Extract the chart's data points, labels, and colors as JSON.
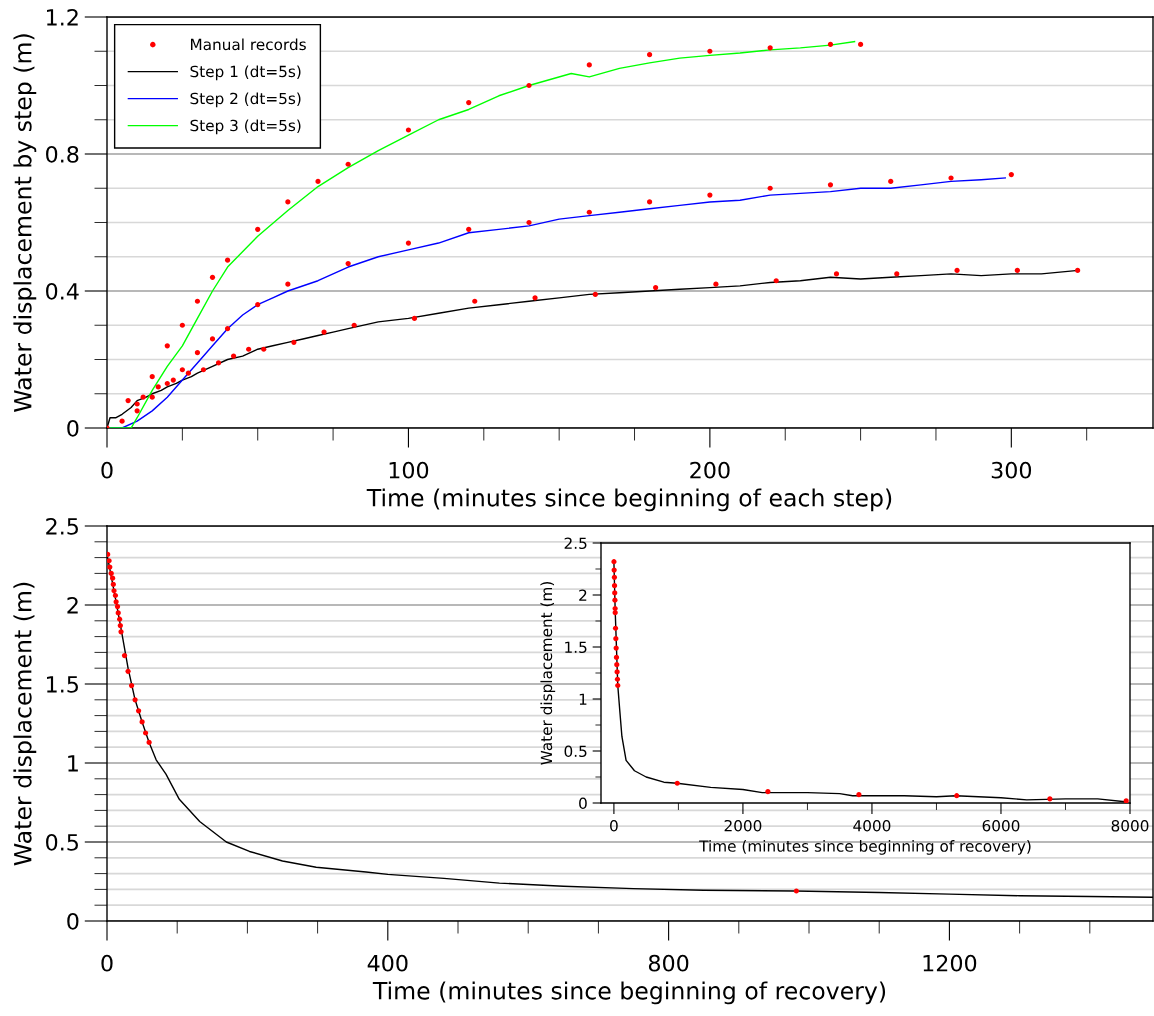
{
  "chart_data": [
    {
      "type": "line",
      "xlabel": "Time (minutes since beginning of each step)",
      "ylabel": "Water displacement by step (m)",
      "xlim": [
        0,
        347
      ],
      "xticks": [
        0,
        {
          "value": 25,
          "label": null
        },
        {
          "value": 50,
          "label": null
        },
        {
          "value": 75,
          "label": null
        },
        100,
        {
          "value": 125,
          "label": null
        },
        {
          "value": 150,
          "label": null
        },
        {
          "value": 175,
          "label": null
        },
        200,
        {
          "value": 225,
          "label": null
        },
        {
          "value": 250,
          "label": null
        },
        {
          "value": 275,
          "label": null
        },
        300,
        {
          "value": 325,
          "label": null
        }
      ],
      "ylim": [
        0,
        1.2
      ],
      "yticks": [
        0,
        {
          "value": 0.1,
          "label": null
        },
        {
          "value": 0.2,
          "label": null
        },
        {
          "value": 0.3,
          "label": null
        },
        0.4,
        {
          "value": 0.5,
          "label": null
        },
        {
          "value": 0.6,
          "label": null
        },
        {
          "value": 0.7,
          "label": null
        },
        0.8,
        {
          "value": 0.9,
          "label": null
        },
        {
          "value": 1.0,
          "label": null
        },
        {
          "value": 1.1,
          "label": null
        },
        1.2
      ],
      "grid": "y",
      "legend": "top left",
      "series": [
        {
          "name": "Manual records",
          "type": "scatter",
          "marker": "circle",
          "color": "#ff0000",
          "x": [
            0,
            5,
            7,
            10,
            10,
            12,
            15,
            15,
            17,
            20,
            20,
            22,
            25,
            25,
            27,
            30,
            30,
            32,
            35,
            35,
            37,
            40,
            40,
            42,
            47,
            50,
            50,
            52,
            60,
            60,
            62,
            70,
            72,
            80,
            80,
            82,
            100,
            100,
            102,
            120,
            120,
            122,
            140,
            140,
            142,
            160,
            180,
            200,
            220,
            240,
            250,
            160,
            180,
            200,
            220,
            240,
            260,
            280,
            300,
            162,
            182,
            202,
            222,
            242,
            262,
            282,
            302,
            322
          ],
          "values": [
            0,
            0.02,
            0.08,
            0.07,
            0.05,
            0.09,
            0.09,
            0.15,
            0.12,
            0.13,
            0.24,
            0.14,
            0.17,
            0.3,
            0.16,
            0.22,
            0.37,
            0.17,
            0.26,
            0.44,
            0.19,
            0.29,
            0.49,
            0.21,
            0.23,
            0.36,
            0.58,
            0.23,
            0.42,
            0.66,
            0.25,
            0.72,
            0.28,
            0.48,
            0.77,
            0.3,
            0.54,
            0.87,
            0.32,
            0.58,
            0.95,
            0.37,
            0.6,
            1.0,
            0.38,
            1.06,
            1.09,
            1.1,
            1.11,
            1.12,
            1.12,
            0.63,
            0.66,
            0.68,
            0.7,
            0.71,
            0.72,
            0.73,
            0.74,
            0.39,
            0.41,
            0.42,
            0.43,
            0.45,
            0.45,
            0.46,
            0.46,
            0.46
          ]
        },
        {
          "name": "Step 1 (dt=5s)",
          "color": "#000000",
          "x": [
            0,
            1,
            3,
            5,
            8,
            10,
            13,
            15,
            18,
            20,
            23,
            25,
            28,
            30,
            35,
            40,
            45,
            50,
            55,
            60,
            65,
            70,
            75,
            80,
            90,
            100,
            110,
            120,
            130,
            140,
            150,
            160,
            170,
            180,
            190,
            200,
            210,
            220,
            230,
            240,
            250,
            260,
            270,
            280,
            290,
            300,
            310,
            322
          ],
          "values": [
            0,
            0.03,
            0.03,
            0.04,
            0.06,
            0.08,
            0.09,
            0.1,
            0.11,
            0.12,
            0.13,
            0.14,
            0.15,
            0.16,
            0.18,
            0.2,
            0.21,
            0.23,
            0.24,
            0.25,
            0.26,
            0.27,
            0.28,
            0.29,
            0.31,
            0.32,
            0.335,
            0.35,
            0.36,
            0.37,
            0.38,
            0.39,
            0.395,
            0.4,
            0.405,
            0.41,
            0.415,
            0.425,
            0.43,
            0.44,
            0.435,
            0.44,
            0.445,
            0.45,
            0.445,
            0.45,
            0.45,
            0.46
          ]
        },
        {
          "name": "Step 2 (dt=5s)",
          "color": "#0000ff",
          "x": [
            0,
            3,
            5,
            10,
            15,
            20,
            25,
            30,
            35,
            40,
            45,
            50,
            55,
            60,
            70,
            80,
            90,
            100,
            110,
            120,
            130,
            140,
            150,
            160,
            170,
            180,
            190,
            200,
            210,
            220,
            230,
            240,
            250,
            260,
            270,
            280,
            290,
            298
          ],
          "values": [
            0,
            0.0,
            0.0,
            0.02,
            0.05,
            0.09,
            0.14,
            0.19,
            0.24,
            0.29,
            0.33,
            0.36,
            0.38,
            0.4,
            0.43,
            0.47,
            0.5,
            0.52,
            0.54,
            0.57,
            0.58,
            0.59,
            0.61,
            0.62,
            0.63,
            0.64,
            0.65,
            0.66,
            0.665,
            0.68,
            0.685,
            0.69,
            0.7,
            0.7,
            0.71,
            0.72,
            0.725,
            0.73
          ]
        },
        {
          "name": "Step 3 (dt=5s)",
          "color": "#00ff00",
          "x": [
            0,
            8,
            10,
            15,
            20,
            25,
            30,
            35,
            40,
            50,
            60,
            70,
            80,
            90,
            100,
            110,
            120,
            130,
            140,
            154,
            160,
            170,
            180,
            190,
            200,
            210,
            220,
            230,
            240,
            248
          ],
          "values": [
            0,
            0.0,
            0.03,
            0.11,
            0.18,
            0.24,
            0.32,
            0.4,
            0.47,
            0.56,
            0.635,
            0.705,
            0.76,
            0.81,
            0.855,
            0.9,
            0.93,
            0.97,
            1.0,
            1.035,
            1.025,
            1.05,
            1.066,
            1.08,
            1.088,
            1.095,
            1.104,
            1.11,
            1.118,
            1.128
          ]
        }
      ]
    },
    {
      "type": "line",
      "xlabel": "Time (minutes since beginning of recovery)",
      "ylabel": "Water displacement (m)",
      "xlim": [
        0,
        1490
      ],
      "xticks": [
        0,
        {
          "value": 100,
          "label": null
        },
        {
          "value": 200,
          "label": null
        },
        {
          "value": 300,
          "label": null
        },
        400,
        {
          "value": 500,
          "label": null
        },
        {
          "value": 600,
          "label": null
        },
        {
          "value": 700,
          "label": null
        },
        800,
        {
          "value": 900,
          "label": null
        },
        {
          "value": 1000,
          "label": null
        },
        {
          "value": 1100,
          "label": null
        },
        1200,
        {
          "value": 1300,
          "label": null
        },
        {
          "value": 1400,
          "label": null
        }
      ],
      "ylim": [
        0,
        2.5
      ],
      "yticks": [
        0,
        {
          "value": 0.1,
          "label": null
        },
        {
          "value": 0.2,
          "label": null
        },
        {
          "value": 0.3,
          "label": null
        },
        {
          "value": 0.4,
          "label": null
        },
        0.5,
        {
          "value": 0.6,
          "label": null
        },
        {
          "value": 0.7,
          "label": null
        },
        {
          "value": 0.8,
          "label": null
        },
        {
          "value": 0.9,
          "label": null
        },
        1,
        {
          "value": 1.1,
          "label": null
        },
        {
          "value": 1.2,
          "label": null
        },
        {
          "value": 1.3,
          "label": null
        },
        {
          "value": 1.4,
          "label": null
        },
        1.5,
        {
          "value": 1.6,
          "label": null
        },
        {
          "value": 1.7,
          "label": null
        },
        {
          "value": 1.8,
          "label": null
        },
        {
          "value": 1.9,
          "label": null
        },
        2,
        {
          "value": 2.1,
          "label": null
        },
        {
          "value": 2.2,
          "label": null
        },
        {
          "value": 2.3,
          "label": null
        },
        {
          "value": 2.4,
          "label": null
        },
        2.5
      ],
      "grid": "y",
      "series": [
        {
          "color": "#000000",
          "x": [
            0,
            10,
            20,
            30,
            40,
            50,
            60,
            70,
            84,
            103,
            132,
            170,
            203,
            250,
            298,
            369,
            400,
            480,
            559,
            650,
            750,
            850,
            980,
            1100,
            1200,
            1300,
            1400,
            1490
          ],
          "values": [
            2.32,
            2.09,
            1.85,
            1.6,
            1.4,
            1.26,
            1.13,
            1.02,
            0.93,
            0.77,
            0.63,
            0.5,
            0.44,
            0.38,
            0.34,
            0.31,
            0.295,
            0.27,
            0.24,
            0.22,
            0.205,
            0.195,
            0.19,
            0.18,
            0.17,
            0.16,
            0.155,
            0.15
          ]
        },
        {
          "type": "scatter",
          "marker": "circle",
          "color": "#ff0000",
          "x": [
            1,
            3,
            4,
            6,
            8,
            9,
            10,
            12,
            13,
            15,
            16,
            18,
            19,
            20,
            25,
            30,
            35,
            40,
            45,
            50,
            55,
            60,
            982
          ],
          "values": [
            2.32,
            2.28,
            2.24,
            2.2,
            2.17,
            2.13,
            2.09,
            2.06,
            2.02,
            1.99,
            1.95,
            1.91,
            1.87,
            1.83,
            1.68,
            1.58,
            1.49,
            1.4,
            1.33,
            1.26,
            1.19,
            1.13,
            0.19
          ]
        }
      ]
    },
    {
      "type": "line",
      "xlabel": "Time (minutes since beginning of recovery)",
      "ylabel": "Water displacement (m)",
      "xlim": [
        -200,
        8000
      ],
      "xticks": [
        0,
        {
          "value": 1000,
          "label": null
        },
        2000,
        {
          "value": 3000,
          "label": null
        },
        4000,
        {
          "value": 5000,
          "label": null
        },
        6000,
        {
          "value": 7000,
          "label": null
        },
        8000
      ],
      "ylim": [
        0,
        2.5
      ],
      "yticks": [
        0,
        {
          "value": 0.25,
          "label": null
        },
        0.5,
        {
          "value": 0.75,
          "label": null
        },
        1,
        {
          "value": 1.25,
          "label": null
        },
        1.5,
        {
          "value": 1.75,
          "label": null
        },
        2,
        {
          "value": 2.25,
          "label": null
        },
        2.5
      ],
      "series": [
        {
          "color": "#000000",
          "x": [
            0,
            20,
            60,
            91,
            124,
            189,
            319,
            500,
            774,
            980,
            1500,
            2000,
            2300,
            3000,
            3500,
            3700,
            4500,
            5000,
            5300,
            6000,
            6400,
            7000,
            7500,
            7950
          ],
          "values": [
            2.32,
            1.85,
            1.13,
            0.89,
            0.64,
            0.41,
            0.31,
            0.25,
            0.2,
            0.19,
            0.15,
            0.13,
            0.1,
            0.1,
            0.09,
            0.07,
            0.07,
            0.06,
            0.07,
            0.05,
            0.03,
            0.04,
            0.04,
            0.01
          ]
        },
        {
          "type": "scatter",
          "marker": "circle",
          "color": "#ff0000",
          "x": [
            1,
            4,
            8,
            10,
            13,
            16,
            19,
            20,
            25,
            30,
            35,
            40,
            45,
            50,
            55,
            60,
            982,
            2387,
            3798,
            5314,
            6758,
            7941
          ],
          "values": [
            2.32,
            2.24,
            2.17,
            2.09,
            2.02,
            1.95,
            1.87,
            1.83,
            1.68,
            1.58,
            1.49,
            1.4,
            1.33,
            1.26,
            1.19,
            1.13,
            0.19,
            0.11,
            0.08,
            0.07,
            0.04,
            0.02
          ]
        }
      ]
    }
  ]
}
